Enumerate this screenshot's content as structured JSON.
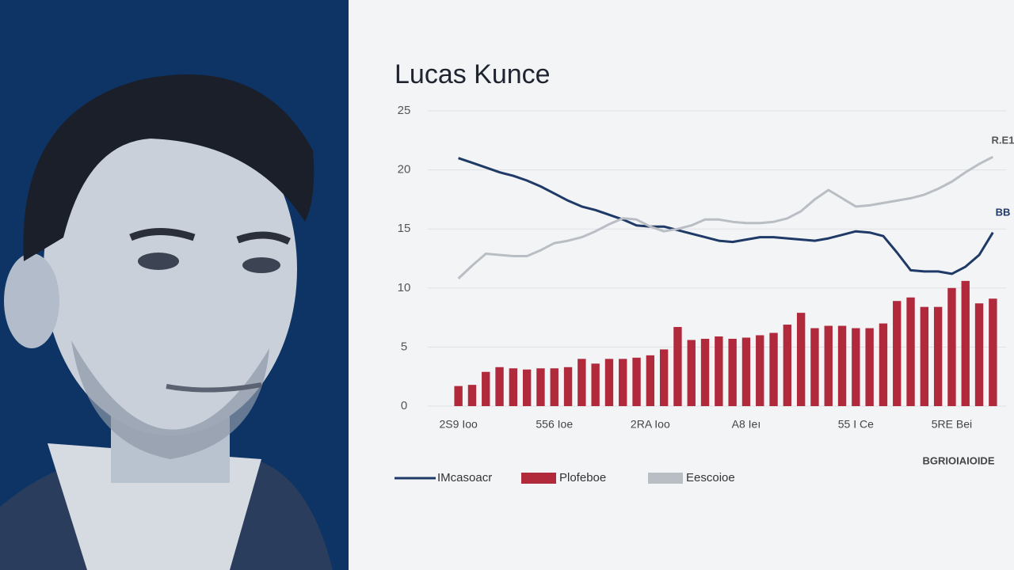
{
  "chart_data": {
    "type": "combo",
    "title": "Lucas Kunce",
    "categories": [
      "2S9 Ioo",
      null,
      null,
      null,
      null,
      null,
      null,
      "556 Ioe",
      null,
      null,
      null,
      null,
      null,
      null,
      "2RA Ioo",
      null,
      null,
      null,
      null,
      null,
      null,
      "A8 Ieı",
      null,
      null,
      null,
      null,
      null,
      null,
      null,
      "55 I Ce",
      null,
      null,
      null,
      null,
      null,
      null,
      "5RE Bei",
      null,
      null,
      null
    ],
    "ylim": [
      0,
      25
    ],
    "yticks": [
      0,
      5,
      10,
      15,
      20,
      25
    ],
    "grid": true,
    "series": [
      {
        "name": "IMcasoacr",
        "type": "line",
        "color": "#1f3a66",
        "values": [
          21,
          20.6,
          20.2,
          19.8,
          19.5,
          19.1,
          18.6,
          18.0,
          17.4,
          16.9,
          16.6,
          16.2,
          15.8,
          15.3,
          15.2,
          15.2,
          14.9,
          14.6,
          14.3,
          14.0,
          13.9,
          14.1,
          14.3,
          14.3,
          14.2,
          14.1,
          14.0,
          14.2,
          14.5,
          14.8,
          14.7,
          14.4,
          13.0,
          11.5,
          11.4,
          11.4,
          11.2,
          11.8,
          12.8,
          14.7
        ]
      },
      {
        "name": "Plofeboe",
        "type": "bar",
        "color": "#b02a3c",
        "values": [
          1.7,
          1.8,
          2.9,
          3.3,
          3.2,
          3.1,
          3.2,
          3.2,
          3.3,
          4.0,
          3.6,
          4.0,
          4.0,
          4.1,
          4.3,
          4.8,
          6.7,
          5.6,
          5.7,
          5.9,
          5.7,
          5.8,
          6.0,
          6.2,
          6.9,
          7.9,
          6.6,
          6.8,
          6.8,
          6.6,
          6.6,
          7.0,
          8.9,
          9.2,
          8.4,
          8.4,
          10.0,
          10.6,
          8.7,
          9.1
        ]
      },
      {
        "name": "Eescoioe",
        "type": "line",
        "color": "#b9bec5",
        "values": [
          10.8,
          11.9,
          12.9,
          12.8,
          12.7,
          12.7,
          13.2,
          13.8,
          14.0,
          14.3,
          14.8,
          15.4,
          15.9,
          15.8,
          15.2,
          14.8,
          15.0,
          15.3,
          15.8,
          15.8,
          15.6,
          15.5,
          15.5,
          15.6,
          15.9,
          16.5,
          17.5,
          18.3,
          17.6,
          16.9,
          17.0,
          17.2,
          17.4,
          17.6,
          17.9,
          18.4,
          19.0,
          19.8,
          20.5,
          21.1
        ]
      }
    ],
    "annotations": [
      "R.E1",
      "BB",
      "BGRIOIAIOIDE"
    ]
  }
}
